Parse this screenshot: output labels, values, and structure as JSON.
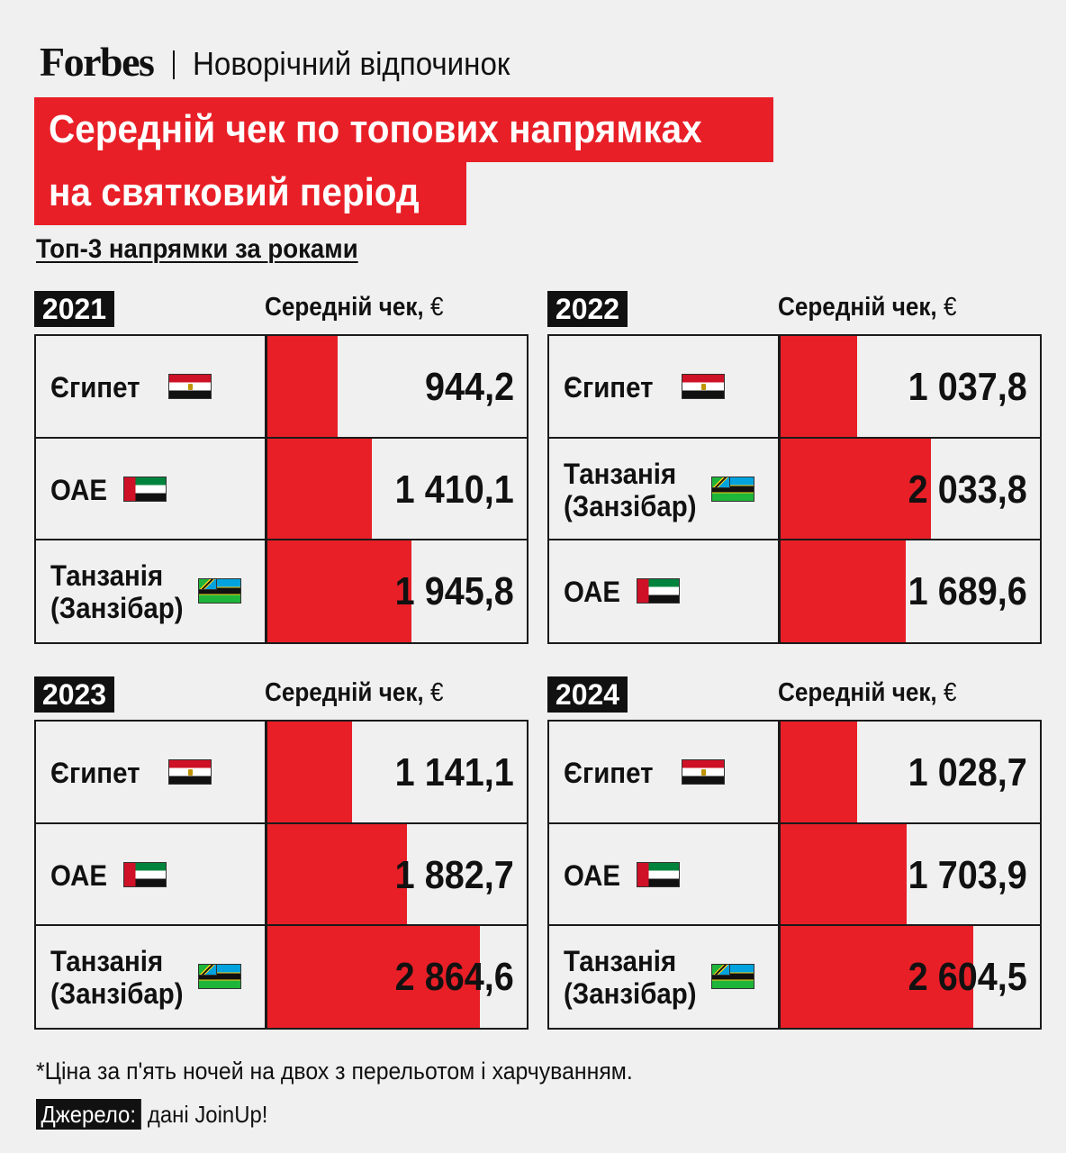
{
  "header": {
    "logo": "Forbes",
    "section": "Новорічний відпочинок"
  },
  "title_lines": [
    "Середній чек по топових напрямках",
    "на святковий період"
  ],
  "subtitle": "Топ-3 напрямки за роками",
  "column_label": "Середній чек,",
  "unit": "€",
  "chart_data": {
    "type": "bar",
    "title": "Середній чек по топових напрямках на святковий період",
    "subtitle": "Топ-3 напрямки за роками",
    "value_label": "Середній чек, €",
    "xlim": [
      0,
      14000
    ],
    "panels": [
      {
        "year": "2021",
        "rows": [
          {
            "country": "Єгипет",
            "flag": "egypt-flag-icon",
            "value": 944.2,
            "display": "944,2"
          },
          {
            "country": "ОАЕ",
            "flag": "uae-flag-icon",
            "value": 1410.1,
            "display": "1 410,1"
          },
          {
            "country": "Танзанія (Занзібар)",
            "flag": "tanzania-flag-icon",
            "value": 1945.8,
            "display": "1 945,8"
          }
        ]
      },
      {
        "year": "2022",
        "rows": [
          {
            "country": "Єгипет",
            "flag": "egypt-flag-icon",
            "value": 1037.8,
            "display": "1 037,8"
          },
          {
            "country": "Танзанія (Занзібар)",
            "flag": "tanzania-flag-icon",
            "value": 2033.8,
            "display": "2 033,8"
          },
          {
            "country": "ОАЕ",
            "flag": "uae-flag-icon",
            "value": 1689.6,
            "display": "1 689,6"
          }
        ]
      },
      {
        "year": "2023",
        "rows": [
          {
            "country": "Єгипет",
            "flag": "egypt-flag-icon",
            "value": 1141.1,
            "display": "1 141,1"
          },
          {
            "country": "ОАЕ",
            "flag": "uae-flag-icon",
            "value": 1882.7,
            "display": "1 882,7"
          },
          {
            "country": "Танзанія (Занзібар)",
            "flag": "tanzania-flag-icon",
            "value": 2864.6,
            "display": "2 864,6"
          }
        ]
      },
      {
        "year": "2024",
        "rows": [
          {
            "country": "Єгипет",
            "flag": "egypt-flag-icon",
            "value": 1028.7,
            "display": "1 028,7"
          },
          {
            "country": "ОАЕ",
            "flag": "uae-flag-icon",
            "value": 1703.9,
            "display": "1 703,9"
          },
          {
            "country": "Танзанія (Занзібар)",
            "flag": "tanzania-flag-icon",
            "value": 2604.5,
            "display": "2 604,5"
          }
        ]
      }
    ]
  },
  "footnote": "*Ціна за п'ять ночей на двох з перельотом і харчуванням.",
  "source": {
    "label": "Джерело:",
    "text": "дані JoinUp!"
  },
  "colors": {
    "accent_red": "#e81f27",
    "background": "#f0f0f0",
    "ink": "#111111"
  }
}
